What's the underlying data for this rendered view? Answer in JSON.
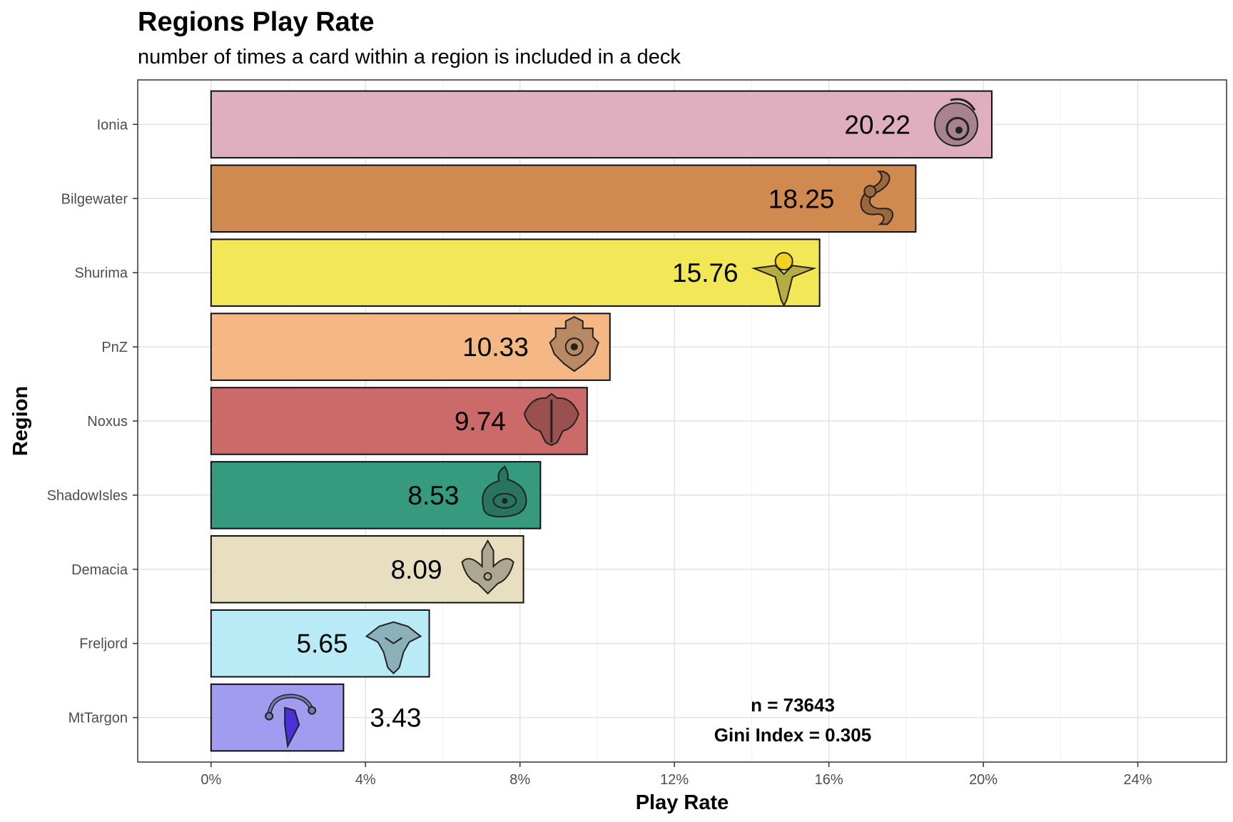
{
  "chart_data": {
    "type": "bar",
    "orientation": "horizontal",
    "title": "Regions Play Rate",
    "subtitle": "number of times a card within a region is included in a deck",
    "xlabel": "Play Rate",
    "ylabel": "Region",
    "categories": [
      "Ionia",
      "Bilgewater",
      "Shurima",
      "PnZ",
      "Noxus",
      "ShadowIsles",
      "Demacia",
      "Freljord",
      "MtTargon"
    ],
    "values": [
      20.22,
      18.25,
      15.76,
      10.33,
      9.74,
      8.53,
      8.09,
      5.65,
      3.43
    ],
    "value_labels": [
      "20.22",
      "18.25",
      "15.76",
      "10.33",
      "9.74",
      "8.53",
      "8.09",
      "5.65",
      "3.43"
    ],
    "colors": [
      "#dfafc0",
      "#d0894f",
      "#f1e757",
      "#f5b784",
      "#cc6a69",
      "#359a7e",
      "#e8dec0",
      "#b9ebf7",
      "#a19cef"
    ],
    "icons": [
      "ionia-icon",
      "bilgewater-icon",
      "shurima-icon",
      "pnz-icon",
      "noxus-icon",
      "shadowisles-icon",
      "demacia-icon",
      "freljord-icon",
      "mttargon-icon"
    ],
    "xlim": [
      -1.9,
      26.3
    ],
    "xticks": [
      0,
      4,
      8,
      12,
      16,
      20,
      24
    ],
    "xtick_labels": [
      "0%",
      "4%",
      "8%",
      "12%",
      "16%",
      "20%",
      "24%"
    ],
    "grid": true,
    "annotations": [
      "n = 73643",
      "Gini Index = 0.305"
    ]
  }
}
